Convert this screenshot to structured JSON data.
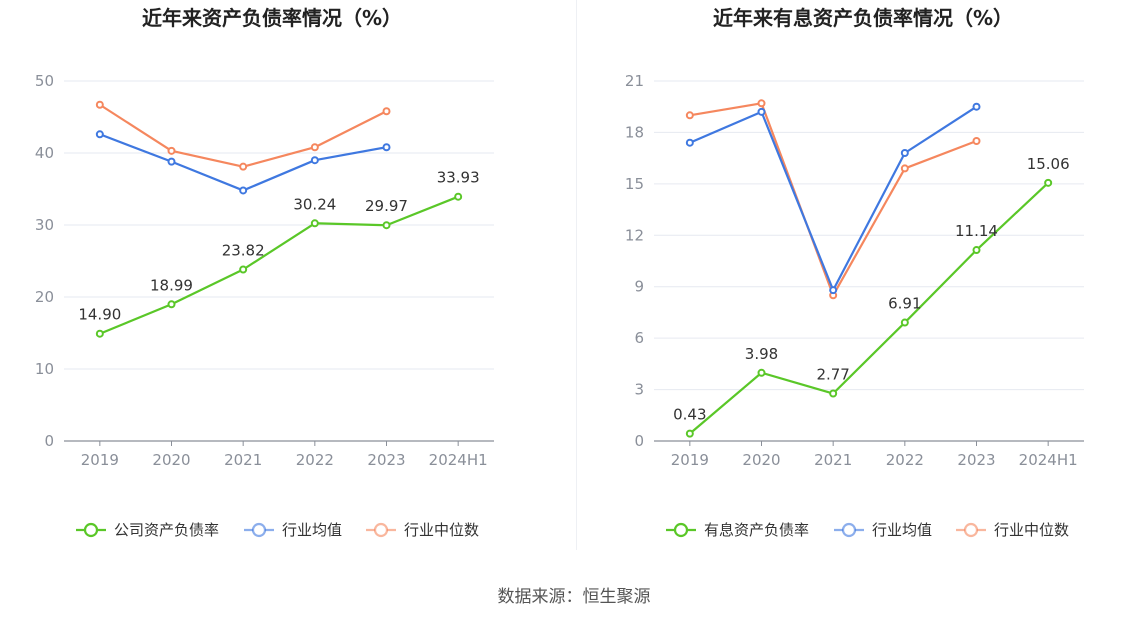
{
  "source_text": "数据来源：恒生聚源",
  "colors": {
    "company": "#5ac728",
    "industry_avg": "#3f78e0",
    "industry_median": "#f5875e"
  },
  "chart_data": [
    {
      "type": "line",
      "title": "近年来资产负债率情况（%）",
      "categories": [
        "2019",
        "2020",
        "2021",
        "2022",
        "2023",
        "2024H1"
      ],
      "ylim": [
        0,
        50
      ],
      "yticks": [
        "0",
        "10",
        "20",
        "30",
        "40",
        "50"
      ],
      "grid": true,
      "legend_position": "bottom",
      "series": [
        {
          "name": "公司资产负债率",
          "key": "company",
          "values": [
            14.9,
            18.99,
            23.82,
            30.24,
            29.97,
            33.93
          ],
          "labels": [
            "14.90",
            "18.99",
            "23.82",
            "30.24",
            "29.97",
            "33.93"
          ]
        },
        {
          "name": "行业均值",
          "key": "industry_avg",
          "values": [
            42.6,
            38.8,
            34.8,
            39.0,
            40.8,
            null
          ]
        },
        {
          "name": "行业中位数",
          "key": "industry_median",
          "values": [
            46.7,
            40.3,
            38.1,
            40.8,
            45.8,
            null
          ]
        }
      ]
    },
    {
      "type": "line",
      "title": "近年来有息资产负债率情况（%）",
      "categories": [
        "2019",
        "2020",
        "2021",
        "2022",
        "2023",
        "2024H1"
      ],
      "ylim": [
        0,
        21
      ],
      "yticks": [
        "0",
        "3",
        "6",
        "9",
        "12",
        "15",
        "18",
        "21"
      ],
      "grid": true,
      "legend_position": "bottom",
      "series": [
        {
          "name": "有息资产负债率",
          "key": "company",
          "values": [
            0.43,
            3.98,
            2.77,
            6.91,
            11.14,
            15.06
          ],
          "labels": [
            "0.43",
            "3.98",
            "2.77",
            "6.91",
            "11.14",
            "15.06"
          ]
        },
        {
          "name": "行业均值",
          "key": "industry_avg",
          "values": [
            17.4,
            19.2,
            8.8,
            16.8,
            19.5,
            null
          ]
        },
        {
          "name": "行业中位数",
          "key": "industry_median",
          "values": [
            19.0,
            19.7,
            8.5,
            15.9,
            17.5,
            null
          ]
        }
      ]
    }
  ]
}
